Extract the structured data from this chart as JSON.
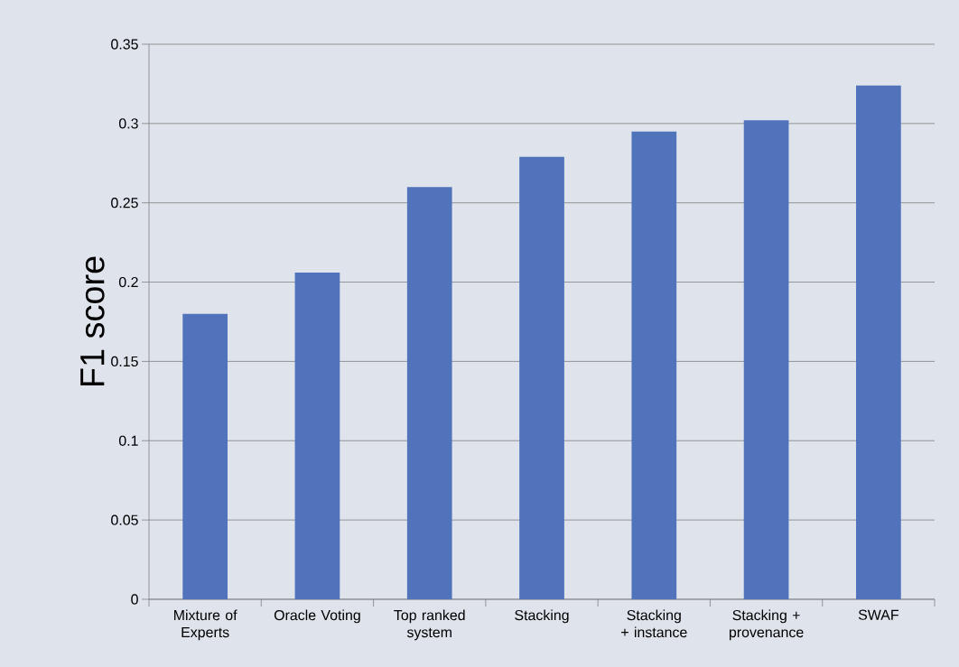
{
  "chart_data": {
    "type": "bar",
    "ylabel": "F1 score",
    "categories": [
      "Mixture of Experts",
      "Oracle Voting",
      "Top ranked system",
      "Stacking",
      "Stacking + instance",
      "Stacking + provenance",
      "SWAF"
    ],
    "values": [
      0.18,
      0.206,
      0.26,
      0.279,
      0.295,
      0.302,
      0.324
    ],
    "color": "#5173bb",
    "ylim": [
      0,
      0.35
    ],
    "yticks": [
      0,
      0.05,
      0.1,
      0.15,
      0.2,
      0.25,
      0.3,
      0.35
    ],
    "grid": "y"
  }
}
